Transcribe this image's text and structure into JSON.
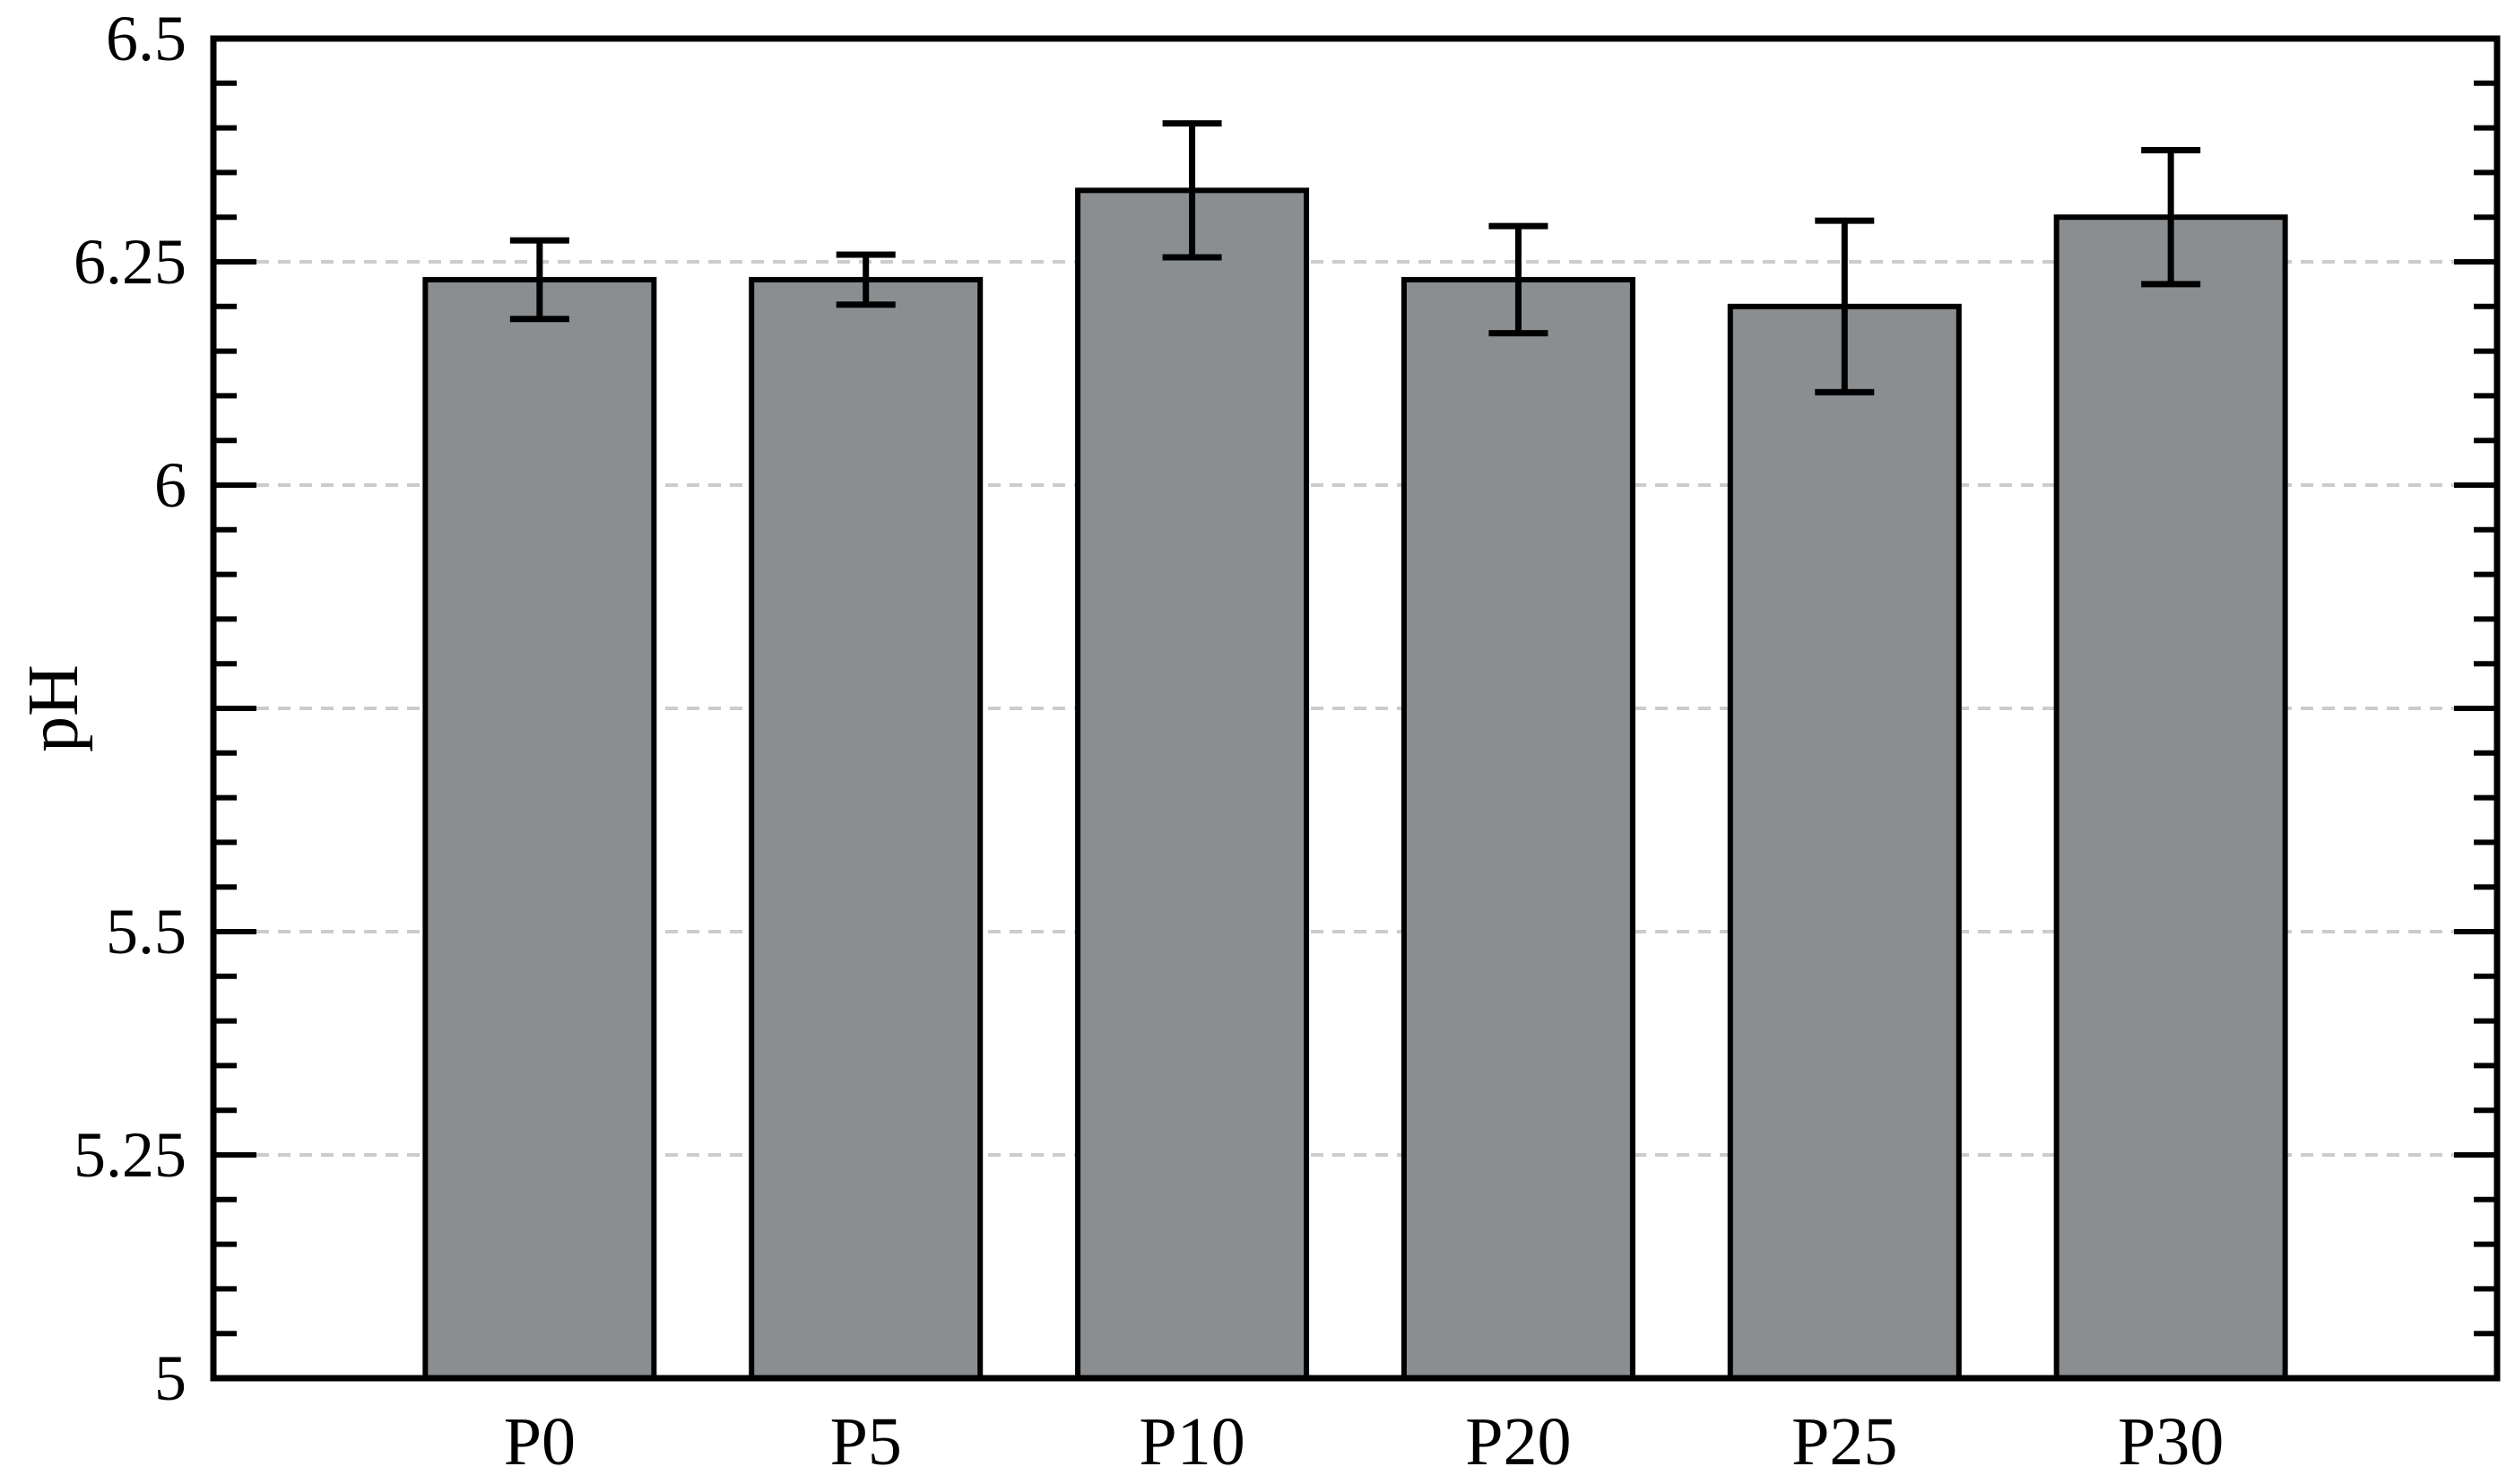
{
  "figure": {
    "background": "#ffffff"
  },
  "chart_data": {
    "type": "bar",
    "title": "",
    "xlabel": "",
    "ylabel": "pH",
    "categories": [
      "P0",
      "P5",
      "P10",
      "P20",
      "P25",
      "P30"
    ],
    "values": [
      6.23,
      6.23,
      6.33,
      6.23,
      6.2,
      6.3
    ],
    "error_bars": [
      0.044,
      0.028,
      0.075,
      0.06,
      0.096,
      0.075
    ],
    "ylim": [
      5,
      6.5
    ],
    "y_major_step": 0.25,
    "y_minor_step": 0.05,
    "y_tick_labels": [
      {
        "value": 5,
        "label": "5"
      },
      {
        "value": 5.25,
        "label": "5.25"
      },
      {
        "value": 5.5,
        "label": "5.5"
      },
      {
        "value": 5.75,
        "label": ""
      },
      {
        "value": 6,
        "label": "6"
      },
      {
        "value": 6.25,
        "label": "6.25"
      },
      {
        "value": 6.5,
        "label": "6.5"
      }
    ],
    "grid": {
      "axis": "y",
      "style": "dashed",
      "on_major_ticks": true
    },
    "legend": null,
    "colors": {
      "bar_fill": "#8a8e91",
      "bar_edge": "#000000",
      "error_bar": "#000000",
      "grid_line": "#cccccc",
      "axis": "#000000",
      "text": "#000000"
    }
  }
}
